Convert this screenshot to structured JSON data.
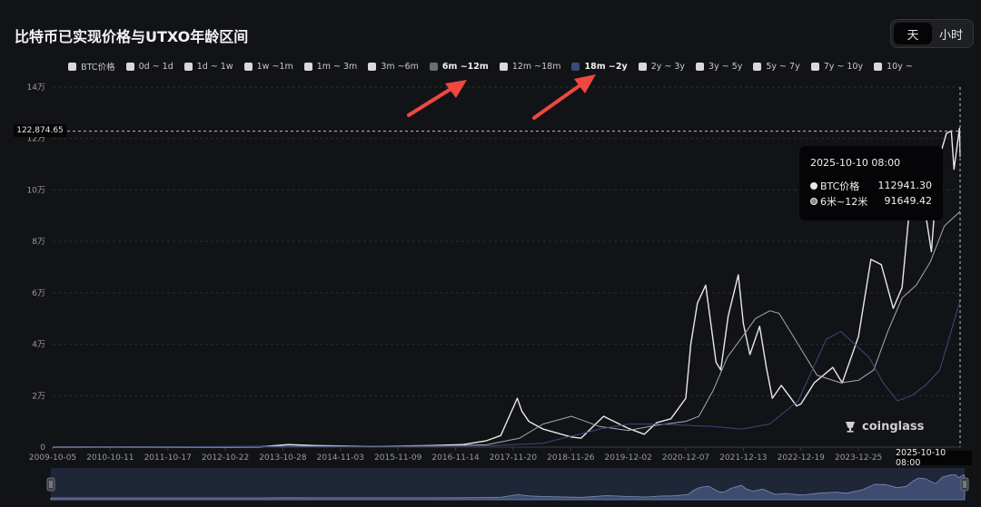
{
  "header": {
    "title": "比特币已实现价格与UTXO年龄区间",
    "toggle": [
      {
        "label": "天",
        "active": true
      },
      {
        "label": "小时",
        "active": false
      }
    ]
  },
  "legend": [
    {
      "label": "BTC价格",
      "color": "#d9d9d9",
      "bold": false
    },
    {
      "label": "0d ~ 1d",
      "color": "#d9d9d9",
      "bold": false
    },
    {
      "label": "1d ~ 1w",
      "color": "#d9d9d9",
      "bold": false
    },
    {
      "label": "1w ~1m",
      "color": "#d9d9d9",
      "bold": false
    },
    {
      "label": "1m ~ 3m",
      "color": "#d9d9d9",
      "bold": false
    },
    {
      "label": "3m ~6m",
      "color": "#d9d9d9",
      "bold": false
    },
    {
      "label": "6m ~12m",
      "color": "#6b6e75",
      "bold": true
    },
    {
      "label": "12m ~18m",
      "color": "#d9d9d9",
      "bold": false
    },
    {
      "label": "18m ~2y",
      "color": "#3d4a7a",
      "bold": true
    },
    {
      "label": "2y ~ 3y",
      "color": "#d9d9d9",
      "bold": false
    },
    {
      "label": "3y ~ 5y",
      "color": "#d9d9d9",
      "bold": false
    },
    {
      "label": "5y ~ 7y",
      "color": "#d9d9d9",
      "bold": false
    },
    {
      "label": "7y ~ 10y",
      "color": "#d9d9d9",
      "bold": false
    },
    {
      "label": "10y ~",
      "color": "#d9d9d9",
      "bold": false
    }
  ],
  "tooltip": {
    "date": "2025-10-10 08:00",
    "rows": [
      {
        "label": "BTC价格",
        "value": "112941.30"
      },
      {
        "label": "6米~12米",
        "value": "91649.42"
      }
    ]
  },
  "crosshair": {
    "price_label": "122,874.65",
    "date_label": "2025-10-10 08:00"
  },
  "watermark": "coinglass",
  "chart_data": {
    "type": "line",
    "yticks": [
      {
        "label": "0",
        "value": 0
      },
      {
        "label": "2万",
        "value": 20000
      },
      {
        "label": "4万",
        "value": 40000
      },
      {
        "label": "6万",
        "value": 60000
      },
      {
        "label": "8万",
        "value": 80000
      },
      {
        "label": "10万",
        "value": 100000
      },
      {
        "label": "12万",
        "value": 120000
      },
      {
        "label": "14万",
        "value": 140000
      }
    ],
    "xticks": [
      "2009-10-05",
      "2010-10-11",
      "2011-10-17",
      "2012-10-22",
      "2013-10-28",
      "2014-11-03",
      "2015-11-09",
      "2016-11-14",
      "2017-11-20",
      "2018-11-26",
      "2019-12-02",
      "2020-12-07",
      "2021-12-13",
      "2022-12-19",
      "2023-12-25"
    ],
    "ylim": [
      0,
      140000
    ],
    "grid": true,
    "series": [
      {
        "name": "BTC价格",
        "color": "#e8e8e8",
        "points": [
          [
            "2009-10-05",
            0
          ],
          [
            "2013-06-01",
            120
          ],
          [
            "2013-12-01",
            1000
          ],
          [
            "2014-06-01",
            600
          ],
          [
            "2015-06-01",
            250
          ],
          [
            "2016-06-01",
            600
          ],
          [
            "2017-01-01",
            1000
          ],
          [
            "2017-06-01",
            2500
          ],
          [
            "2017-09-01",
            4500
          ],
          [
            "2017-12-17",
            19000
          ],
          [
            "2018-01-15",
            14000
          ],
          [
            "2018-03-01",
            10000
          ],
          [
            "2018-06-01",
            7000
          ],
          [
            "2018-11-26",
            4000
          ],
          [
            "2019-02-01",
            3500
          ],
          [
            "2019-06-26",
            12000
          ],
          [
            "2019-09-01",
            10000
          ],
          [
            "2019-12-02",
            7300
          ],
          [
            "2020-03-15",
            5000
          ],
          [
            "2020-06-01",
            9500
          ],
          [
            "2020-09-01",
            11000
          ],
          [
            "2020-12-07",
            19000
          ],
          [
            "2021-01-08",
            40000
          ],
          [
            "2021-02-20",
            56000
          ],
          [
            "2021-04-14",
            63000
          ],
          [
            "2021-06-20",
            33000
          ],
          [
            "2021-07-20",
            30000
          ],
          [
            "2021-09-06",
            51000
          ],
          [
            "2021-11-10",
            67000
          ],
          [
            "2021-12-13",
            48000
          ],
          [
            "2022-01-24",
            36000
          ],
          [
            "2022-03-28",
            47000
          ],
          [
            "2022-05-10",
            31000
          ],
          [
            "2022-06-18",
            19000
          ],
          [
            "2022-08-15",
            24000
          ],
          [
            "2022-11-21",
            16000
          ],
          [
            "2022-12-19",
            16800
          ],
          [
            "2023-03-15",
            25000
          ],
          [
            "2023-07-13",
            31000
          ],
          [
            "2023-09-11",
            25000
          ],
          [
            "2023-12-25",
            43000
          ],
          [
            "2024-03-14",
            73000
          ],
          [
            "2024-05-20",
            71000
          ],
          [
            "2024-08-05",
            54000
          ],
          [
            "2024-10-01",
            62000
          ],
          [
            "2024-11-12",
            89000
          ],
          [
            "2024-12-17",
            106000
          ],
          [
            "2025-02-01",
            102000
          ],
          [
            "2025-04-08",
            76000
          ],
          [
            "2025-05-22",
            111000
          ],
          [
            "2025-07-14",
            122000
          ],
          [
            "2025-08-14",
            123000
          ],
          [
            "2025-09-01",
            108000
          ],
          [
            "2025-10-06",
            124000
          ],
          [
            "2025-10-10",
            112941.3
          ]
        ]
      },
      {
        "name": "6米~12米",
        "color": "#a6a9b0",
        "points": [
          [
            "2009-10-05",
            0
          ],
          [
            "2014-06-01",
            300
          ],
          [
            "2016-06-01",
            350
          ],
          [
            "2017-06-01",
            900
          ],
          [
            "2018-01-01",
            3500
          ],
          [
            "2018-06-01",
            9000
          ],
          [
            "2018-12-01",
            12000
          ],
          [
            "2019-06-01",
            8000
          ],
          [
            "2019-12-01",
            6500
          ],
          [
            "2020-06-01",
            8500
          ],
          [
            "2020-12-07",
            10000
          ],
          [
            "2021-03-01",
            12000
          ],
          [
            "2021-06-01",
            22000
          ],
          [
            "2021-09-01",
            35000
          ],
          [
            "2022-01-01",
            45000
          ],
          [
            "2022-03-01",
            50000
          ],
          [
            "2022-06-01",
            53000
          ],
          [
            "2022-08-01",
            52000
          ],
          [
            "2022-12-01",
            40000
          ],
          [
            "2023-04-01",
            28000
          ],
          [
            "2023-09-01",
            25000
          ],
          [
            "2023-12-25",
            26000
          ],
          [
            "2024-04-01",
            30000
          ],
          [
            "2024-07-01",
            45000
          ],
          [
            "2024-10-01",
            58000
          ],
          [
            "2025-01-01",
            63000
          ],
          [
            "2025-04-01",
            72000
          ],
          [
            "2025-07-01",
            86000
          ],
          [
            "2025-10-10",
            91649.42
          ]
        ]
      },
      {
        "name": "18m ~2y",
        "color": "#3d4a7a",
        "points": [
          [
            "2009-10-05",
            0
          ],
          [
            "2016-01-01",
            300
          ],
          [
            "2017-06-01",
            500
          ],
          [
            "2018-06-01",
            1500
          ],
          [
            "2019-06-01",
            7000
          ],
          [
            "2019-12-01",
            9000
          ],
          [
            "2020-06-01",
            9000
          ],
          [
            "2020-12-01",
            8500
          ],
          [
            "2021-06-01",
            8000
          ],
          [
            "2021-12-01",
            7000
          ],
          [
            "2022-06-01",
            9000
          ],
          [
            "2022-12-01",
            18000
          ],
          [
            "2023-06-01",
            42000
          ],
          [
            "2023-09-01",
            45000
          ],
          [
            "2023-12-01",
            40000
          ],
          [
            "2024-03-01",
            35000
          ],
          [
            "2024-06-01",
            25000
          ],
          [
            "2024-09-01",
            18000
          ],
          [
            "2024-12-01",
            20000
          ],
          [
            "2025-03-01",
            24000
          ],
          [
            "2025-06-01",
            30000
          ],
          [
            "2025-10-10",
            57000
          ]
        ]
      }
    ]
  }
}
